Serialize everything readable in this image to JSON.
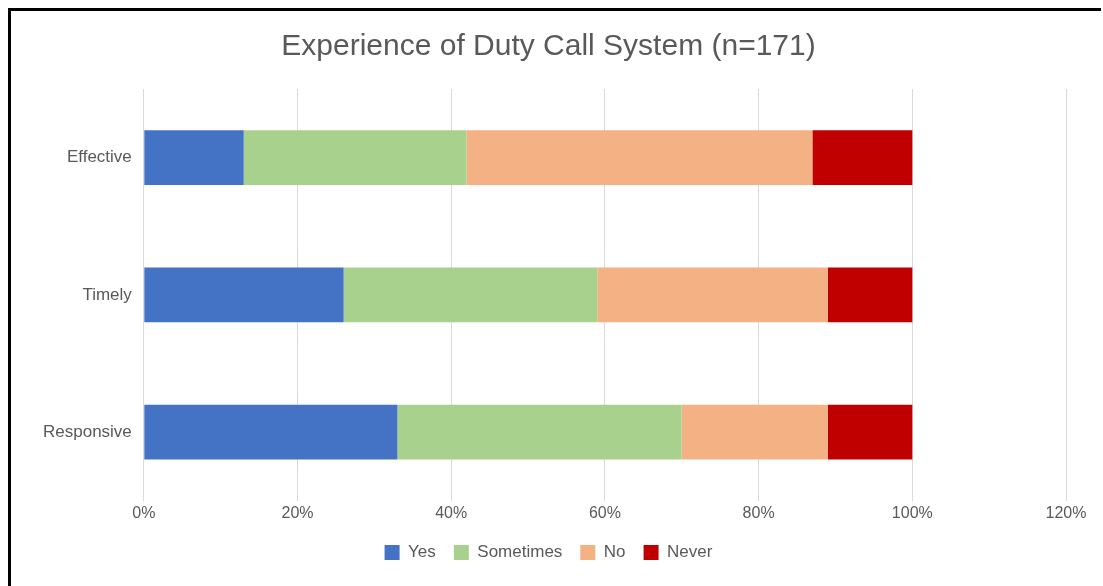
{
  "chart_data": {
    "type": "bar",
    "orientation": "horizontal",
    "stacked": true,
    "title": "Experience of Duty Call System (n=171)",
    "categories": [
      "Effective",
      "Timely",
      "Responsive"
    ],
    "series": [
      {
        "name": "Yes",
        "color": "#4472c4",
        "values": [
          13,
          26,
          33
        ]
      },
      {
        "name": "Sometimes",
        "color": "#a9d18e",
        "values": [
          29,
          33,
          37
        ]
      },
      {
        "name": "No",
        "color": "#f4b183",
        "values": [
          45,
          30,
          19
        ]
      },
      {
        "name": "Never",
        "color": "#c00000",
        "values": [
          13,
          11,
          11
        ]
      }
    ],
    "xlim": [
      0,
      120
    ],
    "xticks": [
      {
        "value": 0,
        "label": "0%"
      },
      {
        "value": 20,
        "label": "20%"
      },
      {
        "value": 40,
        "label": "40%"
      },
      {
        "value": 60,
        "label": "60%"
      },
      {
        "value": 80,
        "label": "80%"
      },
      {
        "value": 100,
        "label": "100%"
      },
      {
        "value": 120,
        "label": "120%"
      }
    ],
    "grid": "x",
    "legend": "bottom"
  }
}
